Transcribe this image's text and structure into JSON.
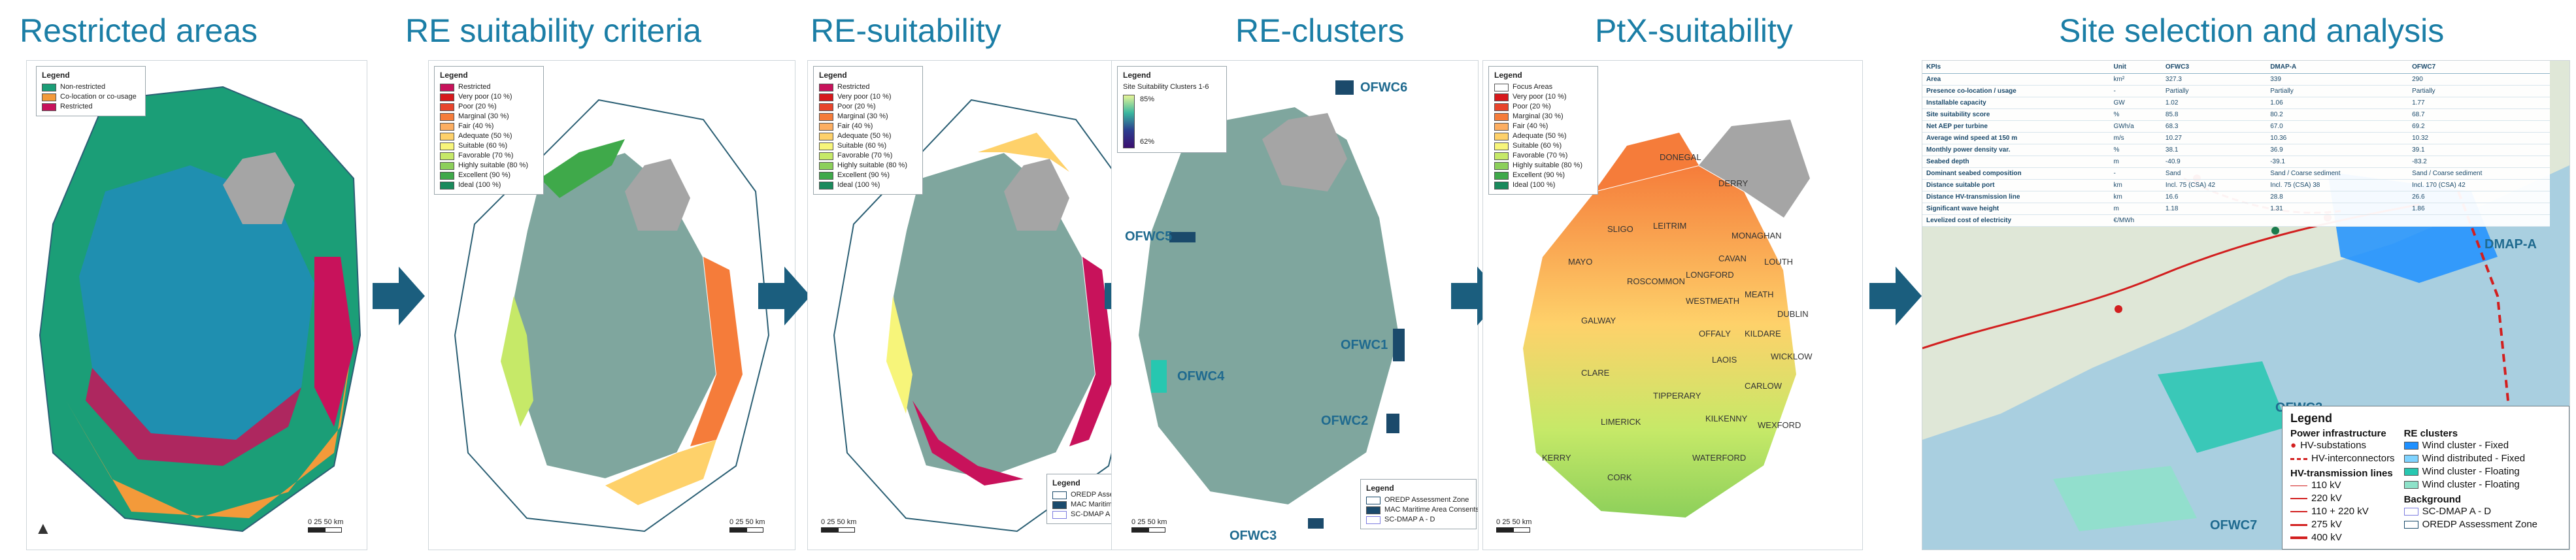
{
  "titles": {
    "p1": "Restricted areas",
    "p2": "RE suitability criteria",
    "p3": "RE-suitability",
    "p4": "RE-clusters",
    "p5": "PtX-suitability",
    "p6": "Site selection and analysis"
  },
  "colors": {
    "title": "#1b7ea6",
    "arrow": "#1b5e7e",
    "land": "#7fa69e",
    "grey_land": "#a5a5a5",
    "sea_blue": "#3a9fbd"
  },
  "restricted_legend": {
    "title": "Legend",
    "items": [
      {
        "label": "Non-restricted",
        "color": "#1b9e77"
      },
      {
        "label": "Co-location or co-usage",
        "color": "#f39a3a"
      },
      {
        "label": "Restricted",
        "color": "#c8125b"
      }
    ]
  },
  "criteria_legend": {
    "title": "Legend",
    "items": [
      {
        "label": "Restricted",
        "color": "#c8125b"
      },
      {
        "label": "Very poor (10 %)",
        "color": "#d7191c"
      },
      {
        "label": "Poor (20 %)",
        "color": "#e8452c"
      },
      {
        "label": "Marginal (30 %)",
        "color": "#f57c3a"
      },
      {
        "label": "Fair (40 %)",
        "color": "#fdae61"
      },
      {
        "label": "Adequate (50 %)",
        "color": "#fed16a"
      },
      {
        "label": "Suitable (60 %)",
        "color": "#f7f57a"
      },
      {
        "label": "Favorable (70 %)",
        "color": "#c6e968"
      },
      {
        "label": "Highly suitable (80 %)",
        "color": "#8ccf5a"
      },
      {
        "label": "Excellent (90 %)",
        "color": "#3fa94a"
      },
      {
        "label": "Ideal (100 %)",
        "color": "#1a8a5c"
      }
    ]
  },
  "suitability_legend": {
    "title": "Legend",
    "items": [
      {
        "label": "Restricted",
        "color": "#c8125b"
      },
      {
        "label": "Very poor (10 %)",
        "color": "#d7191c"
      },
      {
        "label": "Poor (20 %)",
        "color": "#e8452c"
      },
      {
        "label": "Marginal (30 %)",
        "color": "#f57c3a"
      },
      {
        "label": "Fair (40 %)",
        "color": "#fdae61"
      },
      {
        "label": "Adequate (50 %)",
        "color": "#fed16a"
      },
      {
        "label": "Suitable (60 %)",
        "color": "#f7f57a"
      },
      {
        "label": "Favorable (70 %)",
        "color": "#c6e968"
      },
      {
        "label": "Highly suitable (80 %)",
        "color": "#8ccf5a"
      },
      {
        "label": "Excellent (90 %)",
        "color": "#3fa94a"
      },
      {
        "label": "Ideal (100 %)",
        "color": "#1a8a5c"
      }
    ],
    "bottom_title": "Legend",
    "bottom_items": [
      "OREDP Assessment Zone",
      "MAC Maritime Area Consents",
      "SC-DMAP A - D"
    ]
  },
  "clusters_legend": {
    "title": "Legend",
    "gradient_label": "Site Suitability Clusters 1-6",
    "max": "85%",
    "min": "62%",
    "bottom_title": "Legend",
    "bottom_items": [
      "OREDP Assessment Zone",
      "MAC Maritime Area Consents",
      "SC-DMAP A - D"
    ],
    "sites": [
      "OFWC6",
      "OFWC5",
      "OFWC4",
      "OFWC1",
      "OFWC2",
      "OFWC3"
    ]
  },
  "ptx_legend": {
    "title": "Legend",
    "items": [
      {
        "label": "Focus Areas",
        "color": "#ffffff"
      },
      {
        "label": "Very poor (10 %)",
        "color": "#d7191c"
      },
      {
        "label": "Poor (20 %)",
        "color": "#e8452c"
      },
      {
        "label": "Marginal (30 %)",
        "color": "#f57c3a"
      },
      {
        "label": "Fair (40 %)",
        "color": "#fdae61"
      },
      {
        "label": "Adequate (50 %)",
        "color": "#fed16a"
      },
      {
        "label": "Suitable (60 %)",
        "color": "#f7f57a"
      },
      {
        "label": "Favorable (70 %)",
        "color": "#c6e968"
      },
      {
        "label": "Highly suitable (80 %)",
        "color": "#8ccf5a"
      },
      {
        "label": "Excellent (90 %)",
        "color": "#3fa94a"
      },
      {
        "label": "Ideal (100 %)",
        "color": "#1a8a5c"
      }
    ],
    "counties": [
      "DONEGAL",
      "DERRY",
      "SLIGO",
      "LEITRIM",
      "MONAGHAN",
      "LOUTH",
      "MAYO",
      "ROSCOMMON",
      "LONGFORD",
      "CAVAN",
      "MEATH",
      "DUBLIN",
      "GALWAY",
      "WESTMEATH",
      "OFFALY",
      "KILDARE",
      "WICKLOW",
      "LAOIS",
      "CLARE",
      "TIPPERARY",
      "CARLOW",
      "LIMERICK",
      "KILKENNY",
      "WEXFORD",
      "KERRY",
      "CORK",
      "WATERFORD"
    ]
  },
  "kpi": {
    "columns": [
      "KPIs",
      "Unit",
      "OFWC3",
      "DMAP-A",
      "OFWC7"
    ],
    "rows": [
      [
        "Area",
        "km²",
        "327.3",
        "339",
        "290"
      ],
      [
        "Presence co-location / usage",
        "-",
        "Partially",
        "Partially",
        "Partially"
      ],
      [
        "Installable capacity",
        "GW",
        "1.02",
        "1.06",
        "1.77"
      ],
      [
        "Site suitability score",
        "%",
        "85.8",
        "80.2",
        "68.7"
      ],
      [
        "Net AEP per turbine",
        "GWh/a",
        "68.3",
        "67.0",
        "69.2"
      ],
      [
        "Average wind speed at 150 m",
        "m/s",
        "10.27",
        "10.36",
        "10.32"
      ],
      [
        "Monthly power density var.",
        "%",
        "38.1",
        "36.9",
        "39.1"
      ],
      [
        "Seabed depth",
        "m",
        "-40.9",
        "-39.1",
        "-83.2"
      ],
      [
        "Dominant seabed composition",
        "-",
        "Sand",
        "Sand / Coarse sediment",
        "Sand / Coarse sediment"
      ],
      [
        "Distance suitable port",
        "km",
        "Incl. 75 (CSA) 42",
        "Incl. 75 (CSA) 38",
        "Incl. 170 (CSA) 42"
      ],
      [
        "Distance HV-transmission line",
        "km",
        "16.6",
        "28.8",
        "26.6"
      ],
      [
        "Significant wave height",
        "m",
        "1.18",
        "1.31",
        "1.86"
      ],
      [
        "Levelized cost of electricity",
        "€/MWh",
        "",
        "",
        ""
      ]
    ]
  },
  "site_labels": [
    "DMAP-A",
    "OFWC3",
    "OFWC7"
  ],
  "site_legend": {
    "title": "Legend",
    "power_title": "Power infrastructure",
    "power_items": [
      "HV-substations",
      "HV-interconnectors"
    ],
    "lines_title": "HV-transmission lines",
    "line_items": [
      "110 kV",
      "220 kV",
      "110 + 220 kV",
      "275 kV",
      "400 kV"
    ],
    "re_title": "RE clusters",
    "re_items": [
      {
        "label": "Wind cluster - Fixed",
        "color": "#1e90ff"
      },
      {
        "label": "Wind distributed - Fixed",
        "color": "#7fd3ff"
      },
      {
        "label": "Wind cluster - Floating",
        "color": "#27c7b0"
      },
      {
        "label": "Wind cluster - Floating",
        "color": "#8ee2c9"
      }
    ],
    "bg_title": "Background",
    "bg_items": [
      "SC-DMAP A - D",
      "OREDP Assessment Zone"
    ]
  },
  "scale": {
    "a": "0",
    "b": "25",
    "c": "50 km"
  }
}
